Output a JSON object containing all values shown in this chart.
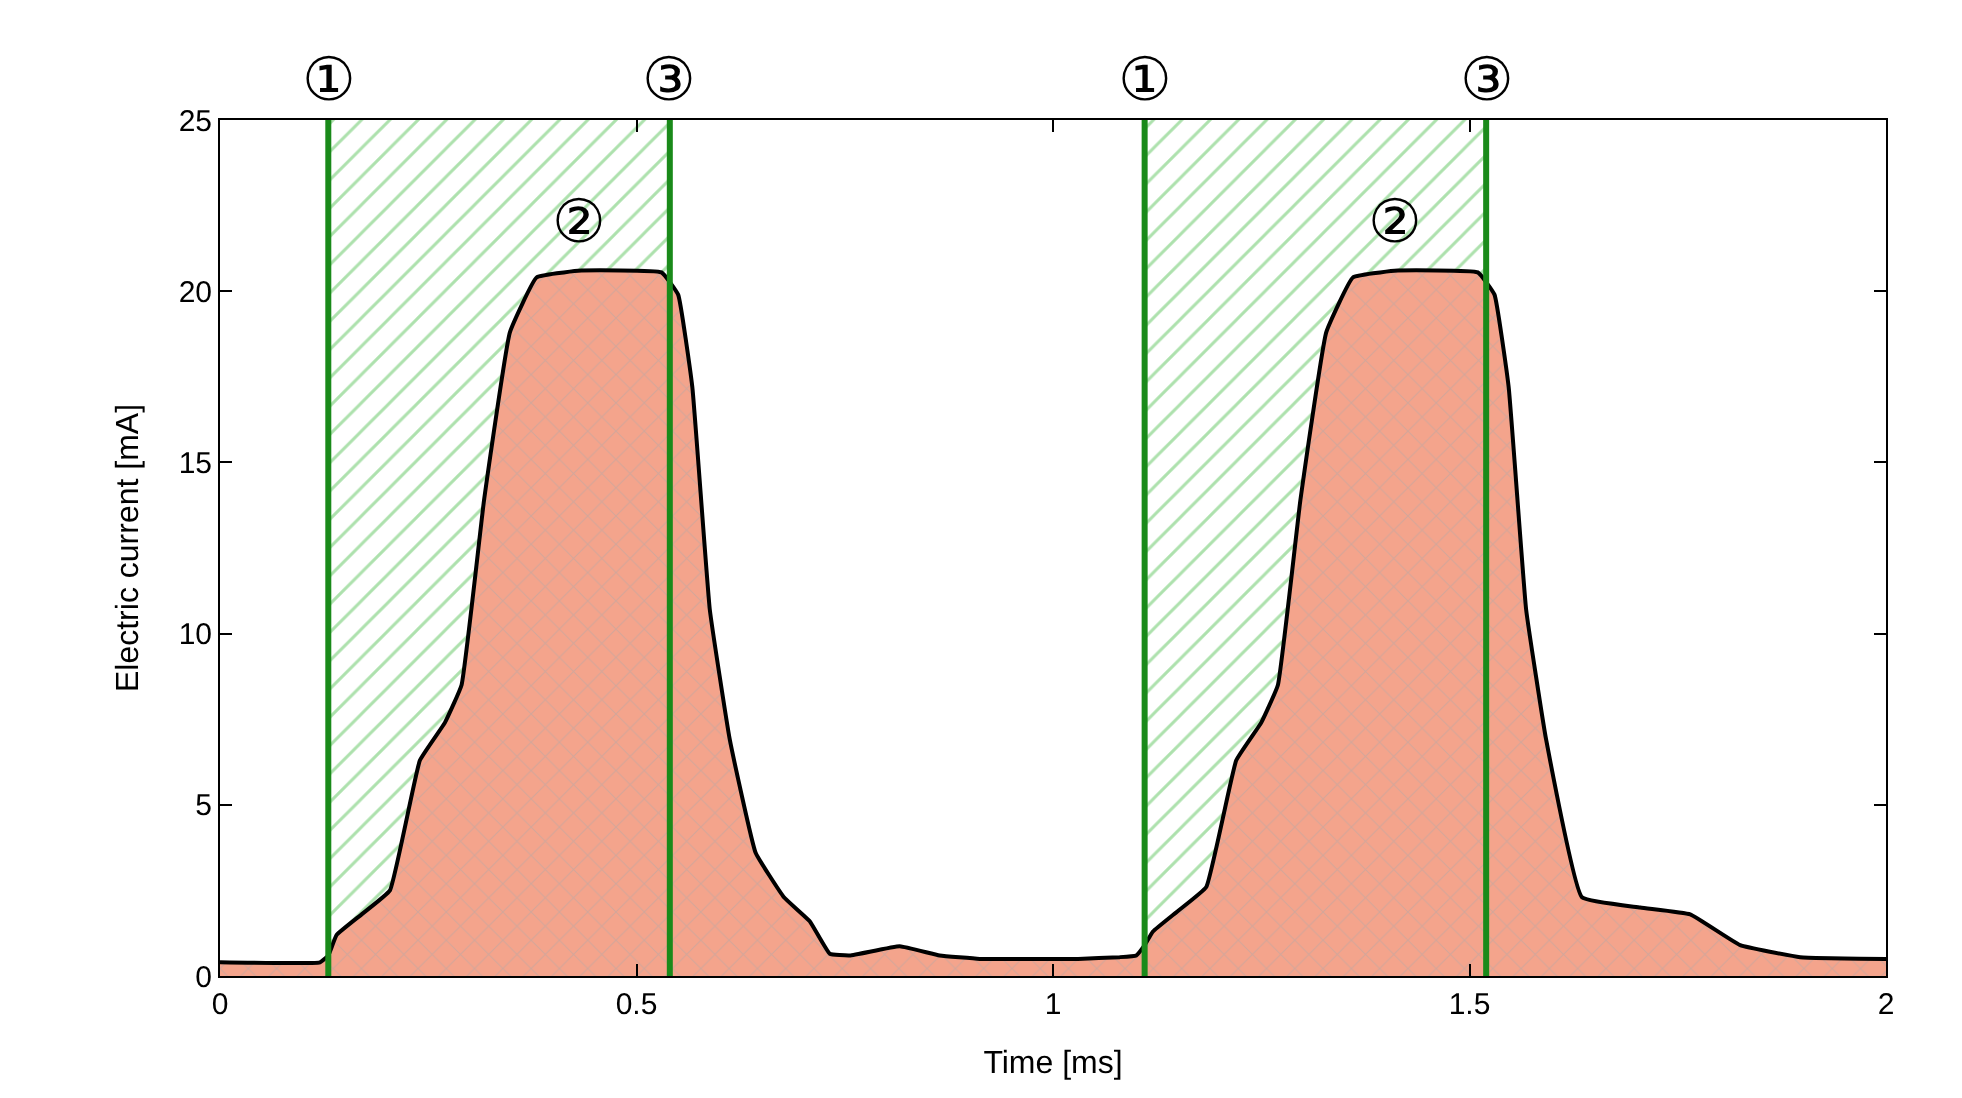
{
  "chart_data": {
    "type": "area",
    "xlabel": "Time [ms]",
    "ylabel": "Electric current [mA]",
    "series": [
      {
        "color": "#f4a48c",
        "x": [
          0,
          0.12,
          0.13,
          0.14,
          0.17,
          0.204,
          0.24,
          0.27,
          0.29,
          0.317,
          0.348,
          0.38,
          0.43,
          0.53,
          0.55,
          0.567,
          0.588,
          0.612,
          0.643,
          0.677,
          0.708,
          0.732,
          0.756,
          0.816,
          0.864,
          0.912,
          1.03,
          1.08,
          1.1,
          1.11,
          1.12,
          1.15,
          1.184,
          1.22,
          1.25,
          1.27,
          1.297,
          1.328,
          1.36,
          1.41,
          1.51,
          1.53,
          1.547,
          1.568,
          1.592,
          1.635,
          1.705,
          1.765,
          1.825,
          1.897,
          2
        ],
        "values": [
          0.4,
          0.4,
          0.6,
          1.2,
          1.8,
          2.5,
          6.3,
          7.4,
          8.5,
          13.9,
          18.8,
          20.4,
          20.6,
          20.55,
          19.9,
          17.2,
          10.7,
          6.9,
          3.6,
          2.3,
          1.6,
          0.65,
          0.6,
          0.87,
          0.6,
          0.5,
          0.5,
          0.55,
          0.6,
          0.9,
          1.3,
          1.9,
          2.6,
          6.3,
          7.4,
          8.5,
          13.9,
          18.8,
          20.4,
          20.6,
          20.55,
          19.9,
          17.2,
          10.7,
          6.9,
          2.3,
          2.0,
          1.8,
          0.9,
          0.55,
          0.5
        ]
      }
    ],
    "xlim": [
      0,
      2
    ],
    "xticks": [
      0,
      0.5,
      1,
      1.5,
      2
    ],
    "ylim": [
      0,
      25
    ],
    "yticks": [
      0,
      5,
      10,
      15,
      20,
      25
    ],
    "ref_lines": [
      {
        "axis": "x",
        "value": 0.13,
        "label": "①",
        "color": "#1a8a1a"
      },
      {
        "axis": "x",
        "value": 0.54,
        "label": "③",
        "color": "#1a8a1a"
      },
      {
        "axis": "x",
        "value": 1.11,
        "label": "①",
        "color": "#1a8a1a"
      },
      {
        "axis": "x",
        "value": 1.52,
        "label": "③",
        "color": "#1a8a1a"
      }
    ],
    "bands": [
      {
        "axis": "x",
        "from": 0.13,
        "to": 0.54,
        "color": "#5cc45c"
      },
      {
        "axis": "x",
        "from": 1.11,
        "to": 1.52,
        "color": "#5cc45c"
      }
    ],
    "annotations": [
      {
        "text": "②",
        "x": 0.43,
        "y": 20.6
      },
      {
        "text": "②",
        "x": 1.41,
        "y": 20.6
      }
    ]
  }
}
